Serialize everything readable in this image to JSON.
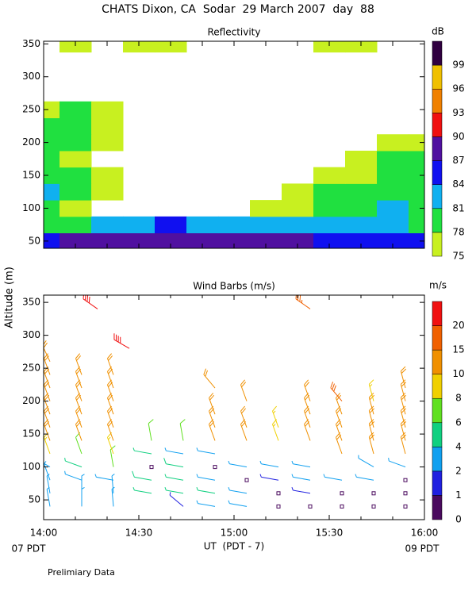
{
  "title": "CHATS Dixon, CA  Sodar  29 March 2007  day  88",
  "ylabel": "Altitude (m)",
  "xlabel": "UT  (PDT - 7)",
  "x_start_label": "07 PDT",
  "x_end_label": "09 PDT",
  "note": "Prelimiary Data",
  "chart_data": [
    {
      "type": "heatmap",
      "title": "Reflectivity",
      "xlim": [
        0,
        120
      ],
      "ylim": [
        39,
        354
      ],
      "xticks": [
        0,
        10,
        20,
        30,
        40,
        50,
        60,
        70,
        80,
        90,
        100,
        110,
        120
      ],
      "yticks": [
        50,
        100,
        150,
        200,
        250,
        300,
        350
      ],
      "x": [
        0,
        10,
        20,
        30,
        40,
        50,
        60,
        70,
        80,
        90,
        100,
        110,
        120
      ],
      "y": [
        50,
        75,
        100,
        125,
        150,
        175,
        200,
        225,
        250,
        275,
        300,
        325,
        350
      ],
      "values": [
        [
          86,
          88,
          89,
          89,
          89,
          89,
          89,
          88,
          87,
          86,
          86,
          86,
          86
        ],
        [
          80,
          80,
          82,
          83,
          84,
          83,
          82,
          82,
          83,
          82,
          81,
          81,
          80
        ],
        [
          79,
          77,
          null,
          null,
          null,
          null,
          null,
          76,
          77,
          78,
          79,
          82,
          79
        ],
        [
          82,
          79,
          76,
          null,
          null,
          null,
          null,
          null,
          76,
          79,
          78,
          79,
          79
        ],
        [
          79,
          78,
          76,
          null,
          null,
          null,
          null,
          null,
          null,
          76,
          77,
          79,
          79
        ],
        [
          79,
          76,
          null,
          null,
          null,
          null,
          null,
          null,
          null,
          null,
          76,
          79,
          78
        ],
        [
          79,
          79,
          76,
          null,
          null,
          null,
          null,
          null,
          null,
          null,
          null,
          76,
          76
        ],
        [
          79,
          78,
          76,
          null,
          null,
          null,
          null,
          null,
          null,
          null,
          null,
          null,
          null
        ],
        [
          76,
          79,
          76,
          null,
          null,
          null,
          null,
          null,
          null,
          null,
          null,
          null,
          null
        ],
        [
          null,
          null,
          null,
          null,
          null,
          null,
          null,
          null,
          null,
          null,
          null,
          null,
          null
        ],
        [
          null,
          null,
          null,
          null,
          null,
          null,
          null,
          null,
          null,
          null,
          null,
          null,
          null
        ],
        [
          null,
          null,
          null,
          null,
          null,
          null,
          null,
          null,
          null,
          null,
          null,
          null,
          null
        ],
        [
          null,
          76,
          null,
          76,
          76,
          null,
          null,
          null,
          null,
          76,
          76,
          null,
          null
        ]
      ],
      "colorbar": {
        "label": "dB",
        "levels": [
          75,
          78,
          81,
          84,
          87,
          90,
          93,
          96,
          99
        ],
        "colors": [
          "#c8f020",
          "#20e040",
          "#10b0f0",
          "#1010f0",
          "#5010a0",
          "#f01010",
          "#f08000",
          "#f0c000",
          "#300040"
        ]
      }
    },
    {
      "type": "barbs",
      "title": "Wind Barbs (m/s)",
      "xlim": [
        0,
        120
      ],
      "ylim": [
        20,
        361
      ],
      "xticks": [
        {
          "value": 0,
          "label": "14:00"
        },
        {
          "value": 30,
          "label": "14:30"
        },
        {
          "value": 60,
          "label": "15:00"
        },
        {
          "value": 90,
          "label": "15:30"
        },
        {
          "value": 120,
          "label": "16:00"
        }
      ],
      "xminorticks": [
        10,
        20,
        40,
        50,
        70,
        80,
        100,
        110
      ],
      "yticks": [
        50,
        100,
        150,
        200,
        250,
        300,
        350
      ],
      "columns": [
        {
          "x": 2,
          "y": [
            40,
            60,
            80,
            100,
            120,
            140,
            160,
            180,
            200,
            220,
            240,
            260
          ],
          "speed": [
            3,
            3,
            3,
            2.5,
            8,
            10,
            10,
            10,
            10,
            10,
            10,
            10
          ],
          "direction": [
            -10,
            -10,
            -20,
            -60,
            -20,
            -20,
            -20,
            -20,
            -20,
            -20,
            -20,
            -25
          ]
        },
        {
          "x": 12,
          "y": [
            40,
            60,
            80,
            100,
            120,
            140,
            160,
            180,
            200,
            220,
            240
          ],
          "speed": [
            3,
            3,
            2.5,
            4,
            7,
            10,
            10,
            10,
            10,
            10,
            10
          ],
          "direction": [
            0,
            0,
            -70,
            -70,
            -20,
            -20,
            -20,
            -20,
            -20,
            -20,
            -20
          ]
        },
        {
          "x": 17,
          "y": [
            340
          ],
          "speed": [
            21
          ],
          "direction": [
            -55
          ]
        },
        {
          "x": 22,
          "y": [
            40,
            60,
            80,
            100,
            120,
            140,
            160,
            180,
            200,
            220,
            240
          ],
          "speed": [
            3,
            3,
            3,
            6,
            8,
            10,
            10,
            10,
            10,
            12,
            12
          ],
          "direction": [
            -5,
            -5,
            -80,
            -10,
            -20,
            -20,
            -20,
            -20,
            -20,
            -20,
            -20
          ]
        },
        {
          "x": 27,
          "y": [
            280
          ],
          "speed": [
            21
          ],
          "direction": [
            -60
          ]
        },
        {
          "x": 34,
          "y": [
            60,
            80,
            100,
            120,
            140
          ],
          "speed": [
            4.5,
            5,
            0.5,
            4.5,
            6
          ],
          "direction": [
            -80,
            -80,
            0,
            -80,
            -10
          ]
        },
        {
          "x": 44,
          "y": [
            40,
            60,
            80,
            100,
            120,
            140
          ],
          "speed": [
            1.5,
            4.5,
            4,
            5,
            3,
            6
          ],
          "direction": [
            -50,
            -80,
            -80,
            -80,
            -80,
            -10
          ]
        },
        {
          "x": 54,
          "y": [
            40,
            60,
            80,
            100,
            120,
            140,
            160,
            180,
            220
          ],
          "speed": [
            3,
            4,
            3,
            0.5,
            3,
            10,
            10,
            10,
            10
          ],
          "direction": [
            -80,
            -80,
            -80,
            0,
            -80,
            -20,
            -20,
            -20,
            -40
          ]
        },
        {
          "x": 64,
          "y": [
            40,
            60,
            80,
            100,
            140,
            160,
            200
          ],
          "speed": [
            3,
            3,
            0.5,
            2.5,
            10,
            10,
            10
          ],
          "direction": [
            -80,
            -80,
            0,
            -80,
            -20,
            -20,
            -20
          ]
        },
        {
          "x": 74,
          "y": [
            40,
            60,
            80,
            100,
            140,
            160
          ],
          "speed": [
            0.5,
            0.5,
            1.5,
            3,
            8,
            8
          ],
          "direction": [
            0,
            0,
            -80,
            -80,
            -20,
            -20
          ]
        },
        {
          "x": 84,
          "y": [
            40,
            60,
            80,
            100,
            140,
            160,
            180,
            200,
            340
          ],
          "speed": [
            0.5,
            1.5,
            2.5,
            3,
            10,
            10,
            10,
            10,
            18
          ],
          "direction": [
            0,
            -80,
            -80,
            -80,
            -20,
            -20,
            -20,
            -20,
            -55
          ]
        },
        {
          "x": 94,
          "y": [
            40,
            60,
            80,
            120,
            140,
            160,
            180,
            200
          ],
          "speed": [
            0.5,
            0.5,
            2.5,
            10,
            10,
            10,
            12,
            16
          ],
          "direction": [
            0,
            0,
            -80,
            -20,
            -20,
            -20,
            -20,
            -40
          ]
        },
        {
          "x": 104,
          "y": [
            40,
            60,
            80,
            100,
            120,
            140,
            160,
            180,
            200
          ],
          "speed": [
            0.5,
            0.5,
            2.5,
            2.5,
            10,
            10,
            10,
            10,
            9
          ],
          "direction": [
            0,
            0,
            -80,
            -60,
            -15,
            -15,
            -15,
            -15,
            -15
          ]
        },
        {
          "x": 114,
          "y": [
            40,
            60,
            80,
            100,
            120,
            140,
            160,
            180,
            200,
            220
          ],
          "speed": [
            0.5,
            0.5,
            0.5,
            3,
            10,
            10,
            10,
            10,
            10,
            10
          ],
          "direction": [
            0,
            0,
            0,
            -70,
            -15,
            -15,
            -15,
            -15,
            -15,
            -15
          ]
        }
      ],
      "colorbar": {
        "label": "m/s",
        "levels": [
          0,
          1,
          2,
          4,
          6,
          8,
          10,
          15,
          20
        ],
        "colors": [
          "#4a0a5e",
          "#2020e0",
          "#10a0f0",
          "#10d080",
          "#60e020",
          "#f0d000",
          "#f09000",
          "#f06000",
          "#f01010"
        ]
      }
    }
  ]
}
